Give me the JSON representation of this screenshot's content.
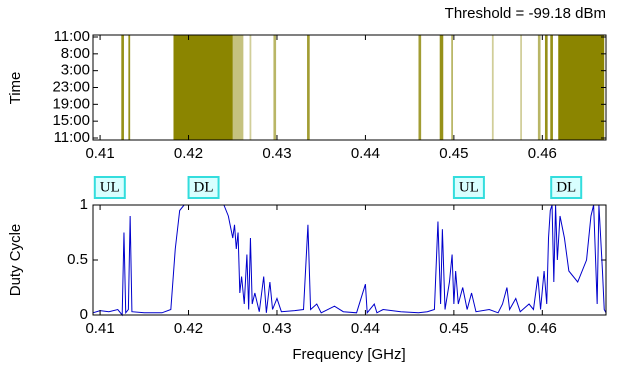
{
  "chart_data": [
    {
      "type": "occupancy",
      "title": "Threshold = -99.18 dBm",
      "y_label": "Time",
      "y_categories": [
        "11:00",
        "8:00",
        "3:00",
        "23:00",
        "19:00",
        "15:00",
        "11:00"
      ],
      "xlim": [
        0.4092,
        0.4672
      ],
      "xticks": [
        0.41,
        0.42,
        0.43,
        0.44,
        0.45,
        0.46
      ],
      "color": "#8b8500",
      "bands": [
        {
          "start": 0.4124,
          "end": 0.4127,
          "occupancy": 0.9
        },
        {
          "start": 0.4132,
          "end": 0.4134,
          "occupancy": 0.9
        },
        {
          "start": 0.4183,
          "end": 0.425,
          "occupancy": 1
        },
        {
          "start": 0.425,
          "end": 0.4262,
          "occupancy": 0.5
        },
        {
          "start": 0.4269,
          "end": 0.4271,
          "occupancy": 0.4
        },
        {
          "start": 0.4296,
          "end": 0.4299,
          "occupancy": 0.6
        },
        {
          "start": 0.4334,
          "end": 0.4337,
          "occupancy": 0.8
        },
        {
          "start": 0.446,
          "end": 0.4463,
          "occupancy": 0.8
        },
        {
          "start": 0.4484,
          "end": 0.4488,
          "occupancy": 0.9
        },
        {
          "start": 0.4497,
          "end": 0.4499,
          "occupancy": 0.6
        },
        {
          "start": 0.4543,
          "end": 0.4545,
          "occupancy": 0.4
        },
        {
          "start": 0.4575,
          "end": 0.4577,
          "occupancy": 0.4
        },
        {
          "start": 0.4595,
          "end": 0.4598,
          "occupancy": 0.6
        },
        {
          "start": 0.4603,
          "end": 0.4606,
          "occupancy": 0.9
        },
        {
          "start": 0.4609,
          "end": 0.4612,
          "occupancy": 0.9
        },
        {
          "start": 0.4618,
          "end": 0.467,
          "occupancy": 1
        }
      ]
    },
    {
      "type": "line",
      "x_label": "Frequency [GHz]",
      "y_label": "Duty Cycle",
      "xlim": [
        0.4092,
        0.4672
      ],
      "xticks": [
        0.41,
        0.42,
        0.43,
        0.44,
        0.45,
        0.46
      ],
      "ylim": [
        0,
        1
      ],
      "yticks": [
        0,
        0.5,
        1
      ],
      "annotations": [
        {
          "text": "UL",
          "x": 0.4111
        },
        {
          "text": "DL",
          "x": 0.4217
        },
        {
          "text": "UL",
          "x": 0.4517
        },
        {
          "text": "DL",
          "x": 0.4627
        }
      ],
      "x": [
        0.4092,
        0.41,
        0.411,
        0.412,
        0.4125,
        0.4127,
        0.4129,
        0.4132,
        0.4134,
        0.4136,
        0.415,
        0.417,
        0.418,
        0.4185,
        0.419,
        0.4195,
        0.424,
        0.4245,
        0.425,
        0.4252,
        0.4254,
        0.4256,
        0.4258,
        0.426,
        0.4263,
        0.4266,
        0.4268,
        0.427,
        0.4272,
        0.4275,
        0.428,
        0.4285,
        0.4288,
        0.4292,
        0.4295,
        0.43,
        0.4305,
        0.432,
        0.433,
        0.4335,
        0.4338,
        0.4345,
        0.435,
        0.4365,
        0.4375,
        0.439,
        0.44,
        0.4402,
        0.441,
        0.4413,
        0.442,
        0.444,
        0.446,
        0.447,
        0.4478,
        0.4482,
        0.4485,
        0.4487,
        0.449,
        0.4495,
        0.4498,
        0.45,
        0.4502,
        0.4505,
        0.451,
        0.4515,
        0.452,
        0.4525,
        0.454,
        0.455,
        0.4555,
        0.456,
        0.4563,
        0.457,
        0.4575,
        0.4585,
        0.459,
        0.4595,
        0.4598,
        0.4602,
        0.4605,
        0.4607,
        0.4609,
        0.4611,
        0.4613,
        0.4615,
        0.4617,
        0.462,
        0.4625,
        0.463,
        0.464,
        0.465,
        0.4655,
        0.4658,
        0.4662,
        0.4664,
        0.4668,
        0.467,
        0.4672
      ],
      "series": [
        {
          "name": "Duty Cycle",
          "color": "#0000cc",
          "values": [
            0.02,
            0.04,
            0.03,
            0.05,
            0.0,
            0.75,
            0.02,
            0.05,
            0.9,
            0.03,
            0.02,
            0.02,
            0.05,
            0.6,
            0.95,
            1.0,
            1.0,
            0.9,
            0.7,
            0.82,
            0.6,
            0.75,
            0.2,
            0.35,
            0.1,
            0.55,
            0.05,
            0.7,
            0.1,
            0.2,
            0.03,
            0.35,
            0.02,
            0.3,
            0.05,
            0.15,
            0.03,
            0.04,
            0.05,
            0.82,
            0.05,
            0.1,
            0.02,
            0.08,
            0.03,
            0.02,
            0.28,
            0.02,
            0.1,
            0.02,
            0.05,
            0.03,
            0.02,
            0.03,
            0.05,
            0.85,
            0.1,
            0.78,
            0.05,
            0.3,
            0.55,
            0.1,
            0.4,
            0.1,
            0.25,
            0.05,
            0.2,
            0.03,
            0.05,
            0.02,
            0.1,
            0.25,
            0.05,
            0.15,
            0.03,
            0.1,
            0.05,
            0.35,
            0.05,
            0.4,
            0.1,
            0.7,
            0.95,
            1.0,
            0.3,
            1.0,
            0.5,
            0.9,
            0.7,
            0.4,
            0.3,
            0.5,
            0.9,
            1.0,
            0.1,
            1.0,
            0.4,
            0.05,
            0.02
          ]
        }
      ]
    }
  ]
}
